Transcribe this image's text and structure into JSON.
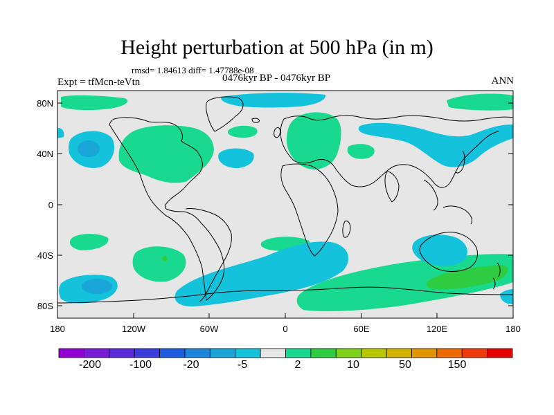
{
  "title": "Height perturbation at 500 hPa (in m)",
  "stats": "rmsd= 1.84613 diff= 1.47788e-08",
  "experiment": "Expt = tfMcn-teVtn",
  "period": "0476kyr BP - 0476kyr BP",
  "season": "ANN",
  "y_ticks": [
    "80N",
    "40N",
    "0",
    "40S",
    "80S"
  ],
  "x_ticks": [
    "180",
    "120W",
    "60W",
    "0",
    "60E",
    "120E",
    "180"
  ],
  "colorbar": {
    "colors": [
      "#9400d3",
      "#7a1bd6",
      "#5a2ad8",
      "#3a3ddc",
      "#1e5ce0",
      "#1b86dc",
      "#19a5d8",
      "#14c3db",
      "#e6e6e6",
      "#19d98e",
      "#2ecc40",
      "#7fd11a",
      "#b8c800",
      "#d2b400",
      "#e49600",
      "#ef6a00",
      "#f03a0a",
      "#e80000"
    ],
    "labels": [
      "-200",
      "-100",
      "-20",
      "-5",
      "2",
      "10",
      "50",
      "150"
    ]
  },
  "colors": {
    "background": "#e6e6e6",
    "positive": "#19d98e",
    "negative": "#14c3db",
    "strong_negative": "#19a5d8",
    "strong_positive": "#2ecc40"
  }
}
